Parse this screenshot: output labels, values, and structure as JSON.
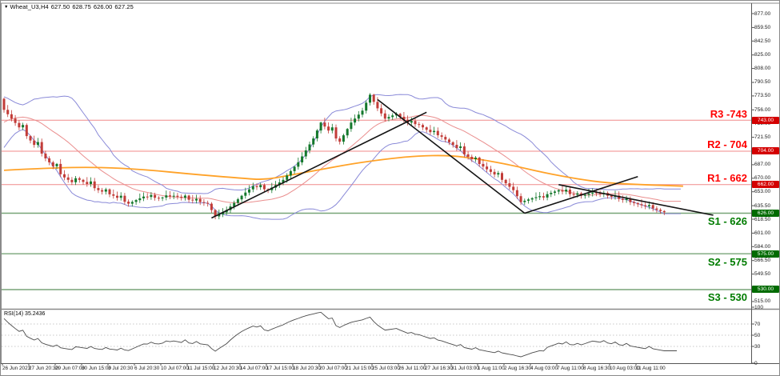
{
  "window": {
    "title_symbol": "Wheat_U3,H4",
    "ohlc": {
      "open": "627.50",
      "high": "628.75",
      "low": "626.00",
      "close": "627.25"
    }
  },
  "rsi_panel": {
    "label": "RSI(14) 35.2436",
    "axis_ticks": [
      100,
      70,
      50,
      30,
      0
    ],
    "guide_levels": [
      70,
      50,
      30
    ]
  },
  "price_axis": {
    "ticks": [
      877.0,
      859.5,
      842.5,
      825.0,
      808.0,
      790.5,
      773.5,
      756.0,
      739.0,
      721.5,
      687.0,
      670.0,
      653.0,
      635.5,
      618.5,
      601.0,
      584.0,
      566.5,
      549.5,
      515.0
    ]
  },
  "date_axis": {
    "labels": [
      "26 Jun 2023",
      "27 Jun 20:30",
      "29 Jun 07:00",
      "30 Jun 15:00",
      "3 Jul 20:30",
      "6 Jul 20:30",
      "10 Jul 07:00",
      "11 Jul 15:00",
      "12 Jul 20:30",
      "14 Jul 07:00",
      "17 Jul 15:00",
      "18 Jul 20:30",
      "20 Jul 07:00",
      "21 Jul 15:00",
      "25 Jul 03:00",
      "26 Jul 11:00",
      "27 Jul 16:30",
      "31 Jul 03:00",
      "1 Aug 11:00",
      "2 Aug 16:30",
      "4 Aug 03:00",
      "7 Aug 11:00",
      "8 Aug 16:30",
      "10 Aug 03:00",
      "11 Aug 11:00"
    ]
  },
  "levels": [
    {
      "id": "R3",
      "label": "R3 -743",
      "price": 743,
      "tag": "743.00",
      "type": "resistance"
    },
    {
      "id": "R2",
      "label": "R2 - 704",
      "price": 704,
      "tag": "704.00",
      "type": "resistance"
    },
    {
      "id": "R1",
      "label": "R1 - 662",
      "price": 662,
      "tag": "662.00",
      "type": "resistance"
    },
    {
      "id": "S1",
      "label": "S1 - 626",
      "price": 626,
      "tag": "626.00",
      "type": "support"
    },
    {
      "id": "S2",
      "label": "S2 - 575",
      "price": 575,
      "tag": "575.00",
      "type": "support"
    },
    {
      "id": "S3",
      "label": "S3 - 530",
      "price": 530,
      "tag": "530.00",
      "type": "support"
    }
  ],
  "colors": {
    "up_candle": "#14782c",
    "down_candle": "#c23c38",
    "bollinger": "#8a8ad8",
    "bollinger_mid": "#ea8e8e",
    "ma_orange": "#ffa228",
    "resistance_line": "#f08a8a",
    "resistance_text": "#ff0000",
    "resistance_tag_bg": "#d40000",
    "support_line": "#78a478",
    "support_text": "#007c00",
    "support_tag_bg": "#006b00",
    "trendline": "#141414",
    "rsi_line": "#4a4a4a",
    "grid_dotted": "#c8c8c8",
    "frame": "#8a8a8a",
    "axis_line": "#555555"
  },
  "chart_data": {
    "type": "candlestick",
    "title": "Wheat_U3,H4",
    "timeframe": "H4",
    "price_range_visible": [
      515,
      877
    ],
    "first_open": 770,
    "closes": [
      756,
      750.5,
      745,
      739.5,
      734,
      737,
      723,
      717.5,
      712,
      715.5,
      701,
      695,
      690,
      685,
      688,
      675,
      671,
      668,
      665,
      670,
      668,
      665.4,
      662.8,
      666,
      657.6,
      655,
      653.2,
      656,
      649.8,
      648,
      645.5,
      648,
      640.5,
      638,
      640.2,
      642.5,
      644.8,
      647,
      646.5,
      649,
      645.5,
      645,
      645.8,
      648.5,
      647.2,
      648,
      646.8,
      645.5,
      648.2,
      643,
      642,
      644,
      640,
      639,
      638,
      630,
      622,
      624.7,
      627.3,
      630,
      634.5,
      639,
      643.5,
      648,
      652,
      656,
      660,
      658.8,
      661.5,
      656.2,
      655,
      658.2,
      661.5,
      664.8,
      668,
      673.5,
      679,
      684.5,
      690,
      697.5,
      705,
      712.5,
      720,
      730,
      740,
      735,
      730,
      734,
      720,
      716,
      724,
      732,
      740,
      745,
      750,
      755,
      765,
      775,
      766,
      758,
      751.5,
      745,
      747,
      749,
      751,
      747.3,
      743.7,
      740,
      742,
      738,
      737,
      734,
      731,
      728,
      729.5,
      724,
      722,
      718.7,
      715.3,
      712,
      708,
      710,
      700,
      697,
      694,
      696,
      688,
      684.7,
      681.3,
      678,
      674.7,
      676.5,
      668,
      663.7,
      659.3,
      655,
      647.5,
      640,
      641.7,
      643.3,
      645,
      646.2,
      647.5,
      645.8,
      650,
      651.7,
      653.3,
      655,
      653.3,
      655.7,
      650,
      649.3,
      651,
      648,
      649.3,
      650.7,
      652,
      651,
      650,
      651.5,
      648,
      646.7,
      648.3,
      644,
      642.7,
      644.3,
      640,
      638.7,
      637.3,
      636,
      634.7,
      636.3,
      632,
      630.4,
      628.8,
      627.25
    ],
    "indicators": {
      "bollinger": {
        "period": 20,
        "deviation": 2
      },
      "rsi": {
        "period": 14,
        "last_value": 35.2436
      },
      "orange_ma": {
        "points_bar_price": [
          [
            0,
            680
          ],
          [
            12,
            683
          ],
          [
            25,
            684
          ],
          [
            37,
            681
          ],
          [
            50,
            675
          ],
          [
            63,
            670
          ],
          [
            69,
            668
          ],
          [
            75,
            673
          ],
          [
            84,
            681
          ],
          [
            92,
            688
          ],
          [
            101,
            694
          ],
          [
            109,
            698
          ],
          [
            118,
            699
          ],
          [
            126,
            694
          ],
          [
            135,
            686
          ],
          [
            143,
            677
          ],
          [
            152,
            669
          ],
          [
            160,
            664
          ],
          [
            169,
            662
          ],
          [
            180,
            660
          ]
        ]
      }
    },
    "trendlines_bar_price": [
      [
        [
          55,
          620
        ],
        [
          112,
          753
        ]
      ],
      [
        [
          99,
          769
        ],
        [
          138,
          626
        ]
      ],
      [
        [
          138,
          626
        ],
        [
          168,
          672
        ]
      ],
      [
        [
          147,
          662
        ],
        [
          188,
          623.5
        ]
      ]
    ]
  }
}
